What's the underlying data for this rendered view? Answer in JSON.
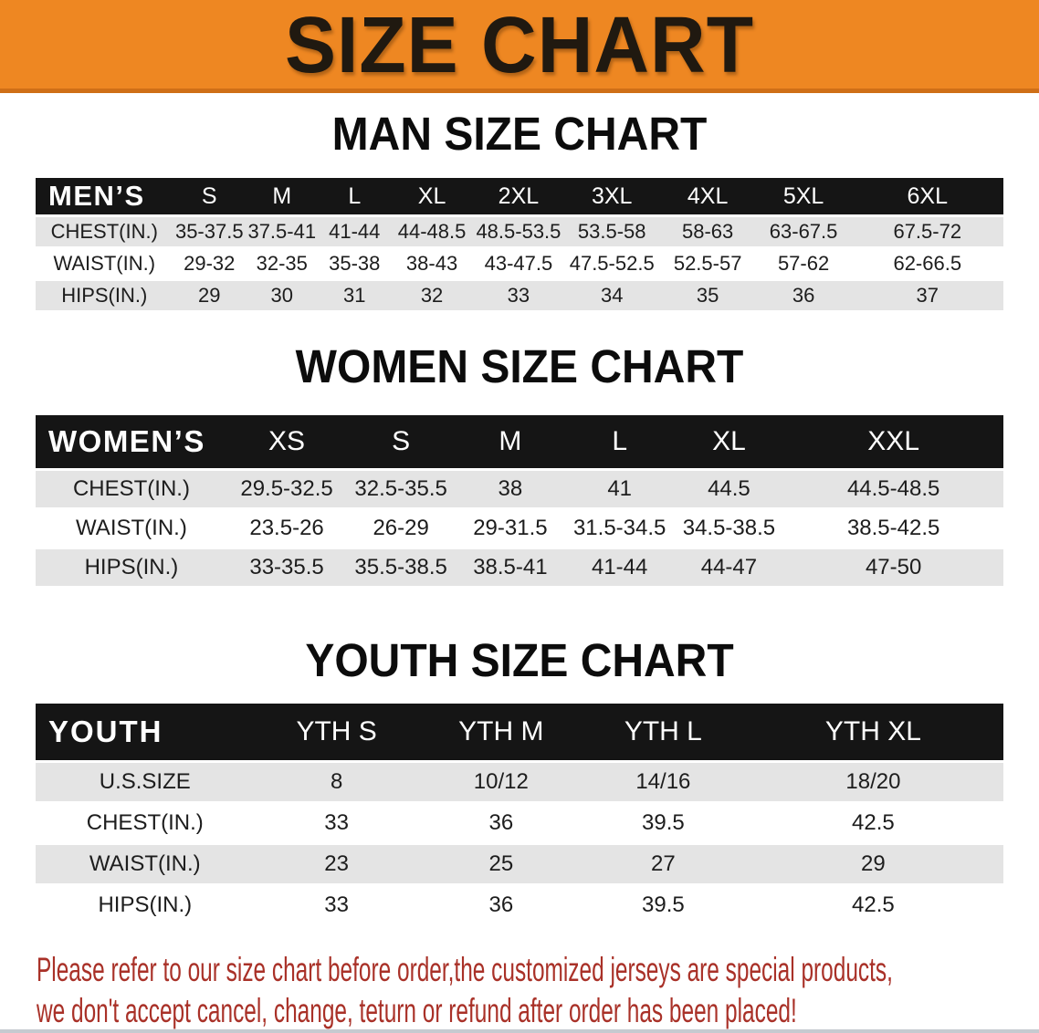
{
  "banner": {
    "title": "SIZE CHART",
    "bg_color": "#ee8722",
    "bg_edge_color": "#cf6f17"
  },
  "sections": [
    {
      "id": "men",
      "heading": "MAN SIZE CHART",
      "table": {
        "header_label": "MEN’S",
        "columns": [
          "S",
          "M",
          "L",
          "XL",
          "2XL",
          "3XL",
          "4XL",
          "5XL",
          "6XL"
        ],
        "rows": [
          {
            "label": "CHEST(IN.)",
            "values": [
              "35-37.5",
              "37.5-41",
              "41-44",
              "44-48.5",
              "48.5-53.5",
              "53.5-58",
              "58-63",
              "63-67.5",
              "67.5-72"
            ]
          },
          {
            "label": "WAIST(IN.)",
            "values": [
              "29-32",
              "32-35",
              "35-38",
              "38-43",
              "43-47.5",
              "47.5-52.5",
              "52.5-57",
              "57-62",
              "62-66.5"
            ]
          },
          {
            "label": "HIPS(IN.)",
            "values": [
              "29",
              "30",
              "31",
              "32",
              "33",
              "34",
              "35",
              "36",
              "37"
            ]
          }
        ]
      }
    },
    {
      "id": "women",
      "heading": "WOMEN SIZE CHART",
      "table": {
        "header_label": "WOMEN’S",
        "columns": [
          "XS",
          "S",
          "M",
          "L",
          "XL",
          "XXL"
        ],
        "rows": [
          {
            "label": "CHEST(IN.)",
            "values": [
              "29.5-32.5",
              "32.5-35.5",
              "38",
              "41",
              "44.5",
              "44.5-48.5"
            ]
          },
          {
            "label": "WAIST(IN.)",
            "values": [
              "23.5-26",
              "26-29",
              "29-31.5",
              "31.5-34.5",
              "34.5-38.5",
              "38.5-42.5"
            ]
          },
          {
            "label": "HIPS(IN.)",
            "values": [
              "33-35.5",
              "35.5-38.5",
              "38.5-41",
              "41-44",
              "44-47",
              "47-50"
            ]
          }
        ]
      }
    },
    {
      "id": "youth",
      "heading": "YOUTH SIZE CHART",
      "table": {
        "header_label": "YOUTH",
        "columns": [
          "YTH S",
          "YTH M",
          "YTH L",
          "YTH XL"
        ],
        "rows": [
          {
            "label": "U.S.SIZE",
            "values": [
              "8",
              "10/12",
              "14/16",
              "18/20"
            ]
          },
          {
            "label": "CHEST(IN.)",
            "values": [
              "33",
              "36",
              "39.5",
              "42.5"
            ]
          },
          {
            "label": "WAIST(IN.)",
            "values": [
              "23",
              "25",
              "27",
              "29"
            ]
          },
          {
            "label": "HIPS(IN.)",
            "values": [
              "33",
              "36",
              "39.5",
              "42.5"
            ]
          }
        ]
      }
    }
  ],
  "footer": {
    "line1": "Please refer to our size chart before order,the customized jerseys are special products,",
    "line2": "we don't accept cancel, change, teturn or refund after order has been placed!",
    "text_color": "#a93128"
  }
}
